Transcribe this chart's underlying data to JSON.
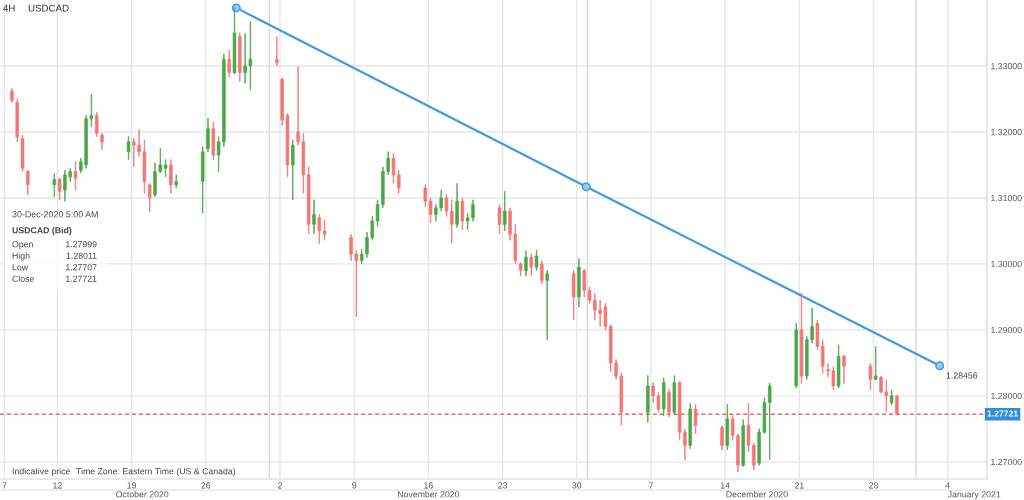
{
  "chart_data": {
    "type": "candlestick",
    "title": "USDCAD",
    "subtitle": "4H",
    "annotations": [
      "30-Dec-2020 5:00 AM",
      "USDCAD (Bid)",
      "Open",
      "1.27999",
      "High",
      "1.28011",
      "Low",
      "1.27707",
      "Close",
      "1.27721",
      "Indicative price",
      "Time Zone: Eastern Time (US & Canada)"
    ],
    "xlim": [
      "2020-10-06T14:00",
      "2021-01-07T17:00"
    ],
    "xticks": [
      {
        "value": "2020-10-07",
        "label": "7"
      },
      {
        "value": "2020-10-12",
        "label": "12"
      },
      {
        "value": "2020-10-19",
        "label": "19"
      },
      {
        "value": "2020-10-26",
        "label": "26"
      },
      {
        "value": "2020-11-02",
        "label": "2"
      },
      {
        "value": "2020-11-09",
        "label": "9"
      },
      {
        "value": "2020-11-16",
        "label": "16"
      },
      {
        "value": "2020-11-23",
        "label": "23"
      },
      {
        "value": "2020-11-30",
        "label": "30"
      },
      {
        "value": "2020-12-07",
        "label": "7"
      },
      {
        "value": "2020-12-14",
        "label": "14"
      },
      {
        "value": "2020-12-21",
        "label": "21"
      },
      {
        "value": "2020-12-28",
        "label": "28"
      },
      {
        "value": "2021-01-04",
        "label": "4"
      }
    ],
    "x2lim": [
      "2020-10-06T14:00",
      "2021-01-07T17:00"
    ],
    "x2ticks": [
      {
        "value": "2020-10-20",
        "label": "October 2020"
      },
      {
        "value": "2020-11-16",
        "label": "November 2020"
      },
      {
        "value": "2020-12-17",
        "label": "December 2020"
      },
      {
        "value": "2021-01-06T12:00",
        "label": "January 2021"
      }
    ],
    "ylim": [
      1.2674,
      1.34
    ],
    "yticks": [
      {
        "value": 1.27,
        "label": "1.27000"
      },
      {
        "value": 1.28,
        "label": "1.28000"
      },
      {
        "value": 1.29,
        "label": "1.29000"
      },
      {
        "value": 1.3,
        "label": "1.30000"
      },
      {
        "value": 1.31,
        "label": "1.31000"
      },
      {
        "value": 1.32,
        "label": "1.32000"
      },
      {
        "value": 1.33,
        "label": "1.33000"
      }
    ],
    "grid": true,
    "ref_lines": [
      {
        "axis": "y",
        "value": 1.27721,
        "label": "1.27721",
        "color": "#f26b6b",
        "line_style": "dashed"
      },
      {
        "axis": "x",
        "value": "2020-11-01",
        "color": "#dadada"
      },
      {
        "axis": "x",
        "value": "2020-12-01",
        "color": "#dadada"
      },
      {
        "axis": "x",
        "value": "2021-01-01",
        "color": "#dadada"
      }
    ],
    "series": [
      {
        "x": [
          "2020-10-07T17:00",
          "2020-10-08T05:00",
          "2020-10-08T17:00",
          "2020-10-09T05:00",
          "2020-10-11T17:00",
          "2020-10-12T05:00",
          "2020-10-12T17:00",
          "2020-10-13T05:00",
          "2020-10-13T17:00",
          "2020-10-14T05:00",
          "2020-10-14T17:00",
          "2020-10-15T05:00",
          "2020-10-15T17:00",
          "2020-10-16T05:00",
          "2020-10-18T17:00",
          "2020-10-19T05:00",
          "2020-10-19T17:00",
          "2020-10-20T05:00",
          "2020-10-20T17:00",
          "2020-10-21T05:00",
          "2020-10-21T17:00",
          "2020-10-22T05:00",
          "2020-10-22T17:00",
          "2020-10-23T05:00",
          "2020-10-25T17:00",
          "2020-10-26T05:00",
          "2020-10-26T17:00",
          "2020-10-27T05:00",
          "2020-10-27T17:00",
          "2020-10-28T05:00",
          "2020-10-28T17:00",
          "2020-10-29T05:00",
          "2020-10-29T17:00",
          "2020-10-30T05:00",
          "2020-11-01T17:00",
          "2020-11-02T05:00",
          "2020-11-02T17:00",
          "2020-11-03T05:00",
          "2020-11-03T17:00",
          "2020-11-04T05:00",
          "2020-11-04T17:00",
          "2020-11-05T05:00",
          "2020-11-05T17:00",
          "2020-11-06T05:00",
          "2020-11-08T17:00",
          "2020-11-09T05:00",
          "2020-11-09T17:00",
          "2020-11-10T05:00",
          "2020-11-10T17:00",
          "2020-11-11T05:00",
          "2020-11-11T17:00",
          "2020-11-12T05:00",
          "2020-11-12T17:00",
          "2020-11-13T05:00",
          "2020-11-15T17:00",
          "2020-11-16T05:00",
          "2020-11-16T17:00",
          "2020-11-17T05:00",
          "2020-11-17T17:00",
          "2020-11-18T05:00",
          "2020-11-18T17:00",
          "2020-11-19T05:00",
          "2020-11-19T17:00",
          "2020-11-20T05:00",
          "2020-11-22T17:00",
          "2020-11-23T05:00",
          "2020-11-23T17:00",
          "2020-11-24T05:00",
          "2020-11-24T17:00",
          "2020-11-25T05:00",
          "2020-11-25T17:00",
          "2020-11-26T05:00",
          "2020-11-26T17:00",
          "2020-11-27T05:00",
          "2020-11-29T17:00",
          "2020-11-30T05:00",
          "2020-11-30T17:00",
          "2020-12-01T05:00",
          "2020-12-01T17:00",
          "2020-12-02T05:00",
          "2020-12-02T17:00",
          "2020-12-03T05:00",
          "2020-12-03T17:00",
          "2020-12-04T05:00",
          "2020-12-06T17:00",
          "2020-12-07T05:00",
          "2020-12-07T17:00",
          "2020-12-08T05:00",
          "2020-12-08T17:00",
          "2020-12-09T05:00",
          "2020-12-09T17:00",
          "2020-12-10T05:00",
          "2020-12-10T17:00",
          "2020-12-11T05:00",
          "2020-12-13T17:00",
          "2020-12-14T05:00",
          "2020-12-14T17:00",
          "2020-12-15T05:00",
          "2020-12-15T17:00",
          "2020-12-16T05:00",
          "2020-12-16T17:00",
          "2020-12-17T05:00",
          "2020-12-17T17:00",
          "2020-12-18T05:00",
          "2020-12-20T17:00",
          "2020-12-21T05:00",
          "2020-12-21T17:00",
          "2020-12-22T05:00",
          "2020-12-22T17:00",
          "2020-12-23T05:00",
          "2020-12-23T17:00",
          "2020-12-24T05:00",
          "2020-12-24T17:00",
          "2020-12-25T05:00",
          "2020-12-27T17:00",
          "2020-12-28T05:00",
          "2020-12-28T17:00",
          "2020-12-29T05:00",
          "2020-12-29T17:00",
          "2020-12-30T05:00"
        ],
        "ohlc": [
          [
            1.3262,
            1.3266,
            1.3245,
            1.3248
          ],
          [
            1.3245,
            1.325,
            1.3185,
            1.3192
          ],
          [
            1.319,
            1.3195,
            1.314,
            1.3145
          ],
          [
            1.314,
            1.3142,
            1.3105,
            1.312
          ],
          [
            1.312,
            1.3137,
            1.3102,
            1.3128
          ],
          [
            1.3128,
            1.313,
            1.3097,
            1.311
          ],
          [
            1.3112,
            1.3142,
            1.3095,
            1.3135
          ],
          [
            1.3132,
            1.3145,
            1.3125,
            1.314
          ],
          [
            1.314,
            1.3155,
            1.3112,
            1.313
          ],
          [
            1.3142,
            1.316,
            1.3138,
            1.3155
          ],
          [
            1.315,
            1.3225,
            1.3145,
            1.322
          ],
          [
            1.322,
            1.3257,
            1.3208,
            1.3225
          ],
          [
            1.3225,
            1.323,
            1.3193,
            1.3198
          ],
          [
            1.3195,
            1.3198,
            1.3173,
            1.3185
          ],
          [
            1.317,
            1.3193,
            1.3158,
            1.3185
          ],
          [
            1.3185,
            1.319,
            1.3147,
            1.318
          ],
          [
            1.318,
            1.3203,
            1.3163,
            1.317
          ],
          [
            1.317,
            1.3188,
            1.3107,
            1.3125
          ],
          [
            1.312,
            1.3122,
            1.3079,
            1.31
          ],
          [
            1.3105,
            1.3153,
            1.3102,
            1.314
          ],
          [
            1.314,
            1.3175,
            1.3138,
            1.315
          ],
          [
            1.3145,
            1.3158,
            1.3132,
            1.315
          ],
          [
            1.315,
            1.3158,
            1.3107,
            1.312
          ],
          [
            1.312,
            1.3135,
            1.3115,
            1.3125
          ],
          [
            1.3125,
            1.3178,
            1.3077,
            1.317
          ],
          [
            1.3175,
            1.3221,
            1.317,
            1.3205
          ],
          [
            1.3205,
            1.3215,
            1.3158,
            1.3165
          ],
          [
            1.3165,
            1.3193,
            1.314,
            1.3185
          ],
          [
            1.3185,
            1.3318,
            1.3178,
            1.331
          ],
          [
            1.331,
            1.3324,
            1.3284,
            1.329
          ],
          [
            1.329,
            1.3388,
            1.3288,
            1.335
          ],
          [
            1.3345,
            1.335,
            1.3276,
            1.329
          ],
          [
            1.329,
            1.3349,
            1.3274,
            1.33
          ],
          [
            1.33,
            1.3367,
            1.3264,
            1.331
          ],
          [
            1.331,
            1.3344,
            1.33,
            1.3305
          ],
          [
            1.328,
            1.3282,
            1.321,
            1.3218
          ],
          [
            1.3225,
            1.3228,
            1.3132,
            1.315
          ],
          [
            1.315,
            1.3188,
            1.3097,
            1.318
          ],
          [
            1.32,
            1.3299,
            1.318,
            1.3185
          ],
          [
            1.3185,
            1.3198,
            1.3107,
            1.3135
          ],
          [
            1.3135,
            1.3147,
            1.3046,
            1.306
          ],
          [
            1.306,
            1.3097,
            1.3046,
            1.3075
          ],
          [
            1.307,
            1.3075,
            1.3031,
            1.305
          ],
          [
            1.305,
            1.3067,
            1.3036,
            1.3045
          ],
          [
            1.304,
            1.3045,
            1.3005,
            1.3015
          ],
          [
            1.3015,
            1.302,
            1.292,
            1.3005
          ],
          [
            1.3005,
            1.3022,
            1.3,
            1.3015
          ],
          [
            1.3015,
            1.3048,
            1.301,
            1.304
          ],
          [
            1.304,
            1.3072,
            1.3036,
            1.3065
          ],
          [
            1.3065,
            1.3097,
            1.3057,
            1.309
          ],
          [
            1.309,
            1.3147,
            1.3085,
            1.314
          ],
          [
            1.314,
            1.317,
            1.3135,
            1.316
          ],
          [
            1.316,
            1.3167,
            1.3122,
            1.3135
          ],
          [
            1.3135,
            1.3142,
            1.3107,
            1.3115
          ],
          [
            1.3115,
            1.312,
            1.3087,
            1.3095
          ],
          [
            1.3095,
            1.31,
            1.3062,
            1.3075
          ],
          [
            1.3075,
            1.309,
            1.3065,
            1.3085
          ],
          [
            1.3085,
            1.3112,
            1.308,
            1.31
          ],
          [
            1.31,
            1.3105,
            1.3072,
            1.308
          ],
          [
            1.308,
            1.3097,
            1.3031,
            1.306
          ],
          [
            1.306,
            1.3122,
            1.3055,
            1.3095
          ],
          [
            1.3095,
            1.31,
            1.3052,
            1.3065
          ],
          [
            1.3065,
            1.3077,
            1.3052,
            1.307
          ],
          [
            1.307,
            1.3097,
            1.3065,
            1.309
          ],
          [
            1.3085,
            1.309,
            1.3046,
            1.306
          ],
          [
            1.306,
            1.311,
            1.305,
            1.308
          ],
          [
            1.308,
            1.3085,
            1.3036,
            1.3045
          ],
          [
            1.3045,
            1.306,
            1.3,
            1.3005
          ],
          [
            1.3,
            1.3002,
            1.2982,
            1.299
          ],
          [
            1.299,
            1.302,
            1.2982,
            1.301
          ],
          [
            1.301,
            1.3015,
            1.2982,
            1.2995
          ],
          [
            1.2995,
            1.3021,
            1.299,
            1.3012
          ],
          [
            1.3,
            1.3005,
            1.297,
            1.2975
          ],
          [
            1.2975,
            1.299,
            1.2885,
            1.2985
          ],
          [
            1.2985,
            1.299,
            1.2915,
            1.295
          ],
          [
            1.295,
            1.3008,
            1.2935,
            1.2995
          ],
          [
            1.299,
            1.2992,
            1.295,
            1.296
          ],
          [
            1.296,
            1.2965,
            1.294,
            1.2945
          ],
          [
            1.2945,
            1.2955,
            1.2915,
            1.293
          ],
          [
            1.293,
            1.2945,
            1.2905,
            1.2925
          ],
          [
            1.2935,
            1.294,
            1.29,
            1.2905
          ],
          [
            1.2905,
            1.2908,
            1.2837,
            1.285
          ],
          [
            1.285,
            1.2855,
            1.2825,
            1.283
          ],
          [
            1.283,
            1.2835,
            1.2756,
            1.2775
          ],
          [
            1.2775,
            1.2831,
            1.276,
            1.2815
          ],
          [
            1.2815,
            1.282,
            1.279,
            1.28
          ],
          [
            1.28,
            1.2805,
            1.2775,
            1.278
          ],
          [
            1.278,
            1.2827,
            1.277,
            1.282
          ],
          [
            1.2805,
            1.281,
            1.2768,
            1.2775
          ],
          [
            1.2775,
            1.2831,
            1.2772,
            1.282
          ],
          [
            1.282,
            1.2822,
            1.2733,
            1.2745
          ],
          [
            1.2745,
            1.275,
            1.2703,
            1.2725
          ],
          [
            1.2725,
            1.2789,
            1.272,
            1.278
          ],
          [
            1.278,
            1.2787,
            1.2743,
            1.2755
          ],
          [
            1.2752,
            1.2755,
            1.2718,
            1.2725
          ],
          [
            1.2725,
            1.2787,
            1.2718,
            1.2765
          ],
          [
            1.2765,
            1.277,
            1.2733,
            1.274
          ],
          [
            1.274,
            1.2742,
            1.2685,
            1.2695
          ],
          [
            1.2695,
            1.2764,
            1.2693,
            1.2755
          ],
          [
            1.2755,
            1.2789,
            1.2715,
            1.2725
          ],
          [
            1.2725,
            1.2728,
            1.2688,
            1.2695
          ],
          [
            1.2698,
            1.275,
            1.2695,
            1.2745
          ],
          [
            1.2745,
            1.2797,
            1.2743,
            1.279
          ],
          [
            1.279,
            1.2819,
            1.2703,
            1.2815
          ],
          [
            1.2815,
            1.291,
            1.2812,
            1.29
          ],
          [
            1.29,
            1.2956,
            1.2819,
            1.283
          ],
          [
            1.283,
            1.289,
            1.2825,
            1.2885
          ],
          [
            1.2885,
            1.2933,
            1.288,
            1.2905
          ],
          [
            1.291,
            1.2915,
            1.287,
            1.2875
          ],
          [
            1.2875,
            1.2885,
            1.2834,
            1.2845
          ],
          [
            1.284,
            1.2849,
            1.2829,
            1.2838
          ],
          [
            1.2838,
            1.2844,
            1.2809,
            1.2815
          ],
          [
            1.2815,
            1.2877,
            1.2812,
            1.286
          ],
          [
            1.286,
            1.2862,
            1.2819,
            1.2845
          ],
          [
            1.2845,
            1.2849,
            1.2809,
            1.2825
          ],
          [
            1.2825,
            1.2875,
            1.2824,
            1.283
          ],
          [
            1.2828,
            1.283,
            1.2804,
            1.2806
          ],
          [
            1.2806,
            1.2824,
            1.2776,
            1.28
          ],
          [
            1.279,
            1.2808,
            1.2786,
            1.28
          ],
          [
            1.27999,
            1.28011,
            1.27707,
            1.27721
          ]
        ],
        "colors": [
          "#f07878",
          "#f07878",
          "#f07878",
          "#f07878",
          "#4ca64c",
          "#f07878",
          "#4ca64c",
          "#4ca64c",
          "#f07878",
          "#4ca64c",
          "#4ca64c",
          "#4ca64c",
          "#f07878",
          "#f07878",
          "#4ca64c",
          "#f07878",
          "#f07878",
          "#f07878",
          "#f07878",
          "#4ca64c",
          "#4ca64c",
          "#4ca64c",
          "#f07878",
          "#4ca64c",
          "#4ca64c",
          "#4ca64c",
          "#f07878",
          "#4ca64c",
          "#4ca64c",
          "#f07878",
          "#4ca64c",
          "#f07878",
          "#4ca64c",
          "#4ca64c",
          "#f07878",
          "#f07878",
          "#f07878",
          "#4ca64c",
          "#f07878",
          "#f07878",
          "#f07878",
          "#4ca64c",
          "#f07878",
          "#f07878",
          "#f07878",
          "#f07878",
          "#4ca64c",
          "#4ca64c",
          "#4ca64c",
          "#4ca64c",
          "#4ca64c",
          "#4ca64c",
          "#f07878",
          "#f07878",
          "#f07878",
          "#f07878",
          "#4ca64c",
          "#4ca64c",
          "#f07878",
          "#f07878",
          "#4ca64c",
          "#f07878",
          "#4ca64c",
          "#4ca64c",
          "#f07878",
          "#4ca64c",
          "#f07878",
          "#f07878",
          "#f07878",
          "#4ca64c",
          "#f07878",
          "#4ca64c",
          "#f07878",
          "#4ca64c",
          "#f07878",
          "#4ca64c",
          "#f07878",
          "#f07878",
          "#f07878",
          "#f07878",
          "#f07878",
          "#f07878",
          "#f07878",
          "#f07878",
          "#4ca64c",
          "#f07878",
          "#f07878",
          "#4ca64c",
          "#f07878",
          "#4ca64c",
          "#f07878",
          "#f07878",
          "#4ca64c",
          "#f07878",
          "#f07878",
          "#4ca64c",
          "#f07878",
          "#f07878",
          "#4ca64c",
          "#f07878",
          "#f07878",
          "#4ca64c",
          "#4ca64c",
          "#4ca64c",
          "#4ca64c",
          "#f07878",
          "#4ca64c",
          "#4ca64c",
          "#f07878",
          "#f07878",
          "#f07878",
          "#f07878",
          "#4ca64c",
          "#f07878",
          "#f07878",
          "#4ca64c",
          "#f07878",
          "#f07878",
          "#4ca64c",
          "#f07878"
        ]
      },
      {
        "type": "line",
        "x": [
          "2020-10-28T21:00",
          "2020-11-30T21:30",
          "2021-01-03T06:00"
        ],
        "values": [
          1.3388,
          1.3117,
          1.28456
        ],
        "color": "#3d9ae6",
        "marker": "circle",
        "value_labels": [
          null,
          null,
          "1.28456"
        ]
      }
    ]
  }
}
